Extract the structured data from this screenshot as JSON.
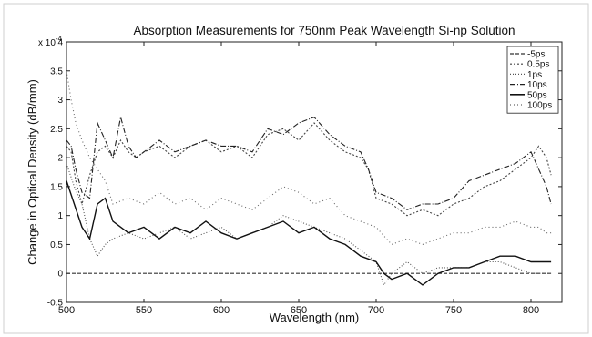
{
  "chart_data": {
    "type": "line",
    "title": "Absorption Measurements for 750nm Peak Wavelength Si-np Solution",
    "xlabel": "Wavelength (nm)",
    "ylabel": "Change in Optical Density (dB/mm)",
    "y_exponent_label": "x 10",
    "y_exponent_power": "-4",
    "xlim": [
      500,
      820
    ],
    "ylim": [
      -0.5,
      4
    ],
    "xticks": [
      "500",
      "550",
      "600",
      "650",
      "700",
      "750",
      "800"
    ],
    "yticks": [
      "-0.5",
      "0",
      "0.5",
      "1",
      "1.5",
      "2",
      "2.5",
      "3",
      "3.5",
      "4"
    ],
    "legend_position": "top-right",
    "series": [
      {
        "name": "-5ps",
        "dash": "4,2",
        "color": "#333333",
        "x": [
          500,
          510,
          520,
          530,
          540,
          550,
          560,
          570,
          580,
          590,
          600,
          610,
          620,
          630,
          640,
          650,
          660,
          670,
          680,
          690,
          700,
          710,
          720,
          730,
          740,
          750,
          760,
          770,
          780,
          790,
          800,
          810,
          813
        ],
        "y": [
          0,
          0,
          0,
          0,
          0,
          0,
          0,
          0,
          0,
          0,
          0,
          0,
          0,
          0,
          0,
          0,
          0,
          0,
          0,
          0,
          0,
          0,
          0,
          0,
          0,
          0,
          0,
          0,
          0,
          0,
          0,
          0,
          0
        ]
      },
      {
        "name": "0.5ps",
        "dash": "2,2",
        "color": "#444444",
        "x": [
          500,
          503,
          506,
          510,
          515,
          520,
          525,
          530,
          535,
          540,
          545,
          550,
          560,
          570,
          580,
          590,
          600,
          610,
          620,
          630,
          640,
          650,
          660,
          670,
          680,
          690,
          695,
          700,
          710,
          720,
          730,
          740,
          750,
          760,
          770,
          780,
          790,
          800,
          805,
          810,
          813
        ],
        "y": [
          2.2,
          2.1,
          1.6,
          1.2,
          1.7,
          2.1,
          2.2,
          2.0,
          2.3,
          2.1,
          2.0,
          2.1,
          2.2,
          2.0,
          2.2,
          2.3,
          2.1,
          2.2,
          2.0,
          2.4,
          2.5,
          2.3,
          2.6,
          2.3,
          2.1,
          2.0,
          1.8,
          1.3,
          1.2,
          1.0,
          1.1,
          1.0,
          1.2,
          1.3,
          1.5,
          1.6,
          1.8,
          2.0,
          2.2,
          2.0,
          1.7
        ]
      },
      {
        "name": "1ps",
        "dash": "1,2",
        "color": "#555555",
        "x": [
          500,
          505,
          510,
          515,
          520,
          525,
          530,
          540,
          550,
          560,
          570,
          580,
          590,
          600,
          610,
          620,
          630,
          640,
          650,
          660,
          670,
          680,
          690,
          700,
          705,
          710,
          720,
          730,
          740,
          750,
          760,
          770,
          780,
          790,
          800,
          805,
          810,
          813
        ],
        "y": [
          1.9,
          1.5,
          1.2,
          0.6,
          0.3,
          0.5,
          0.6,
          0.7,
          0.6,
          0.7,
          0.8,
          0.6,
          0.7,
          0.8,
          0.6,
          0.7,
          0.8,
          1.0,
          0.9,
          0.8,
          0.7,
          0.6,
          0.4,
          0.2,
          -0.2,
          0.0,
          0.2,
          0.0,
          0.1,
          0.1,
          0.1,
          0.2,
          0.2,
          0.1,
          0.0,
          0.0,
          0.0,
          0.0
        ]
      },
      {
        "name": "10ps",
        "dash": "6,2,1,2",
        "color": "#222222",
        "x": [
          500,
          503,
          506,
          510,
          515,
          520,
          525,
          530,
          535,
          540,
          545,
          550,
          560,
          570,
          580,
          590,
          600,
          610,
          620,
          630,
          640,
          650,
          660,
          670,
          680,
          690,
          695,
          700,
          710,
          720,
          730,
          740,
          750,
          760,
          770,
          780,
          790,
          800,
          805,
          810,
          813
        ],
        "y": [
          2.3,
          2.2,
          1.8,
          1.4,
          1.3,
          2.6,
          2.3,
          2.0,
          2.7,
          2.2,
          2.0,
          2.1,
          2.3,
          2.1,
          2.2,
          2.3,
          2.2,
          2.2,
          2.1,
          2.5,
          2.4,
          2.6,
          2.7,
          2.4,
          2.2,
          2.1,
          1.8,
          1.4,
          1.3,
          1.1,
          1.2,
          1.2,
          1.3,
          1.6,
          1.7,
          1.8,
          1.9,
          2.1,
          1.8,
          1.5,
          1.2
        ]
      },
      {
        "name": "50ps",
        "dash": "",
        "color": "#111111",
        "x": [
          500,
          505,
          510,
          515,
          520,
          525,
          530,
          540,
          550,
          560,
          570,
          580,
          590,
          600,
          610,
          620,
          630,
          640,
          650,
          660,
          670,
          680,
          690,
          700,
          705,
          710,
          720,
          730,
          740,
          750,
          760,
          770,
          780,
          790,
          800,
          805,
          810,
          813
        ],
        "y": [
          1.6,
          1.2,
          0.8,
          0.6,
          1.2,
          1.3,
          0.9,
          0.7,
          0.8,
          0.6,
          0.8,
          0.7,
          0.9,
          0.7,
          0.6,
          0.7,
          0.8,
          0.9,
          0.7,
          0.8,
          0.6,
          0.5,
          0.3,
          0.2,
          0.0,
          -0.1,
          0.0,
          -0.2,
          0.0,
          0.1,
          0.1,
          0.2,
          0.3,
          0.3,
          0.2,
          0.2,
          0.2,
          0.2
        ]
      },
      {
        "name": "100ps",
        "dash": "1,3",
        "color": "#666666",
        "x": [
          500,
          503,
          506,
          510,
          515,
          520,
          525,
          530,
          540,
          550,
          560,
          570,
          580,
          590,
          600,
          610,
          620,
          630,
          640,
          650,
          660,
          670,
          680,
          690,
          700,
          710,
          720,
          730,
          740,
          750,
          760,
          770,
          780,
          790,
          800,
          805,
          810,
          813
        ],
        "y": [
          3.5,
          3.0,
          2.6,
          2.3,
          2.0,
          1.8,
          1.6,
          1.2,
          1.3,
          1.2,
          1.4,
          1.2,
          1.3,
          1.1,
          1.3,
          1.2,
          1.1,
          1.3,
          1.5,
          1.4,
          1.2,
          1.3,
          1.0,
          0.9,
          0.8,
          0.5,
          0.6,
          0.5,
          0.6,
          0.7,
          0.7,
          0.8,
          0.8,
          0.9,
          0.8,
          0.8,
          0.7,
          0.7
        ]
      }
    ]
  }
}
